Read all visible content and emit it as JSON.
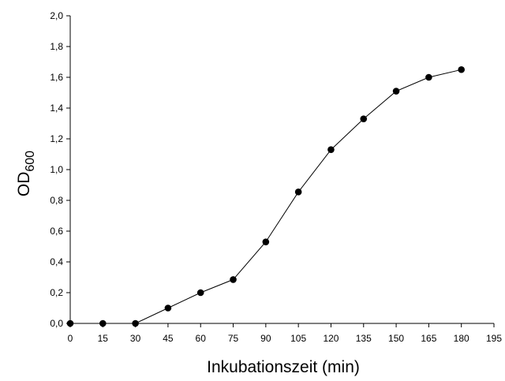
{
  "chart_data": {
    "type": "line",
    "xlabel": "Inkubationszeit (min)",
    "ylabel": "OD",
    "ylabel_subscript": "600",
    "xlim": [
      0,
      195
    ],
    "ylim": [
      0,
      2.0
    ],
    "x_ticks": [
      0,
      15,
      30,
      45,
      60,
      75,
      90,
      105,
      120,
      135,
      150,
      165,
      180,
      195
    ],
    "y_ticks": [
      "0,0",
      "0,2",
      "0,4",
      "0,6",
      "0,8",
      "1,0",
      "1,2",
      "1,4",
      "1,6",
      "1,8",
      "2,0"
    ],
    "y_tick_values": [
      0,
      0.2,
      0.4,
      0.6,
      0.8,
      1.0,
      1.2,
      1.4,
      1.6,
      1.8,
      2.0
    ],
    "grid": false,
    "marker": "filled-circle",
    "series": [
      {
        "x": [
          0,
          15,
          30,
          45,
          60,
          75,
          90,
          105,
          120,
          135,
          150,
          165,
          180
        ],
        "values": [
          0.0,
          0.0,
          0.0,
          0.1,
          0.2,
          0.285,
          0.53,
          0.855,
          1.13,
          1.33,
          1.51,
          1.6,
          1.65
        ]
      }
    ],
    "colors": {
      "line": "#000000",
      "marker": "#000000"
    }
  }
}
